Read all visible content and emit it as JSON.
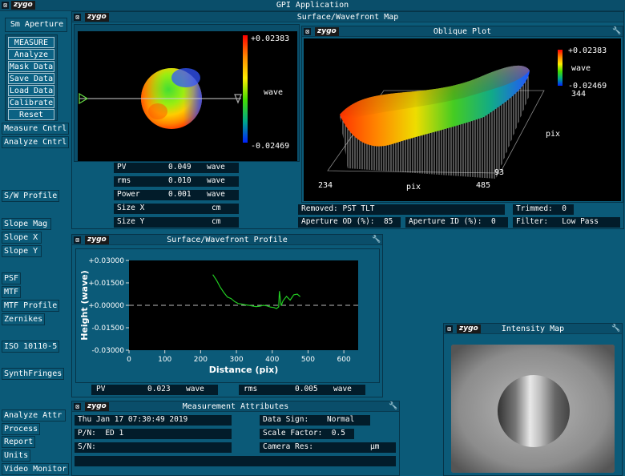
{
  "app": {
    "title": "GPI Application"
  },
  "left_buttons": {
    "sm_aperture": "Sm Aperture",
    "measure": "MEASURE",
    "analyze": "Analyze",
    "mask_data": "Mask Data",
    "save_data": "Save Data",
    "load_data": "Load Data",
    "calibrate": "Calibrate",
    "reset": "Reset",
    "measure_cntrl": "Measure Cntrl",
    "analyze_cntrl": "Analyze Cntrl",
    "sw_profile": "S/W Profile",
    "slope_mag": "Slope Mag",
    "slope_x": "Slope X",
    "slope_y": "Slope Y",
    "psf": "PSF",
    "mtf": "MTF",
    "mtf_profile": "MTF Profile",
    "zernikes": "Zernikes",
    "iso": "ISO 10110-5",
    "synthfringes": "SynthFringes",
    "analyze_attr": "Analyze Attr",
    "process": "Process",
    "report": "Report",
    "units": "Units",
    "video_monitor": "Video Monitor"
  },
  "logo": "zygo",
  "surface_map": {
    "title": "Surface/Wavefront Map",
    "scale_max": "+0.02383",
    "scale_min": "-0.02469",
    "scale_unit": "wave",
    "results": [
      {
        "label": "PV",
        "value": "0.049",
        "unit": "wave"
      },
      {
        "label": "rms",
        "value": "0.010",
        "unit": "wave"
      },
      {
        "label": "Power",
        "value": "0.001",
        "unit": "wave"
      },
      {
        "label": "Size X",
        "value": "",
        "unit": "cm"
      },
      {
        "label": "Size Y",
        "value": "",
        "unit": "cm"
      }
    ]
  },
  "oblique_plot": {
    "title": "Oblique Plot",
    "scale_max": "+0.02383",
    "scale_unit": "wave",
    "scale_min": "-0.02469",
    "y_top": "344",
    "y_axis_label": "pix",
    "y_bottom": "93",
    "x_left": "234",
    "x_axis_label": "pix",
    "x_right": "485"
  },
  "map_status": {
    "removed": "Removed: PST TLT",
    "trimmed": "Trimmed:  0",
    "aperture_od": "Aperture OD (%):  85",
    "aperture_id": "Aperture ID (%):  0",
    "filter": "Filter:   Low Pass"
  },
  "profile": {
    "title": "Surface/Wavefront Profile",
    "pv_label": "PV",
    "pv_value": "0.023",
    "pv_unit": "wave",
    "rms_label": "rms",
    "rms_value": "0.005",
    "rms_unit": "wave"
  },
  "chart_data": {
    "type": "line",
    "title": "",
    "xlabel": "Distance (pix)",
    "ylabel": "Height (wave)",
    "xlim": [
      0,
      640
    ],
    "ylim": [
      -0.03,
      0.03
    ],
    "x_ticks": [
      "0",
      "100",
      "200",
      "300",
      "400",
      "500",
      "600"
    ],
    "y_ticks": [
      "+0.03000",
      "+0.01500",
      "+0.00000",
      "-0.01500",
      "-0.03000"
    ],
    "grid": false,
    "zero_line": true,
    "series": [
      {
        "color": "#22cc22",
        "x": [
          234,
          245,
          255,
          265,
          275,
          285,
          295,
          305,
          315,
          325,
          335,
          345,
          355,
          365,
          375,
          385,
          395,
          405,
          412,
          418,
          420,
          425,
          430,
          440,
          450,
          460,
          470,
          478
        ],
        "y": [
          0.0205,
          0.0165,
          0.012,
          0.0085,
          0.0055,
          0.0045,
          0.0025,
          0.0012,
          0.0008,
          0.0003,
          0.0,
          -0.0005,
          -0.0009,
          -0.0006,
          0.0,
          -0.0004,
          -0.0012,
          -0.0015,
          -0.0022,
          -0.001,
          0.0095,
          -0.0003,
          0.003,
          0.006,
          0.0035,
          0.007,
          0.0075,
          0.0058
        ]
      }
    ]
  },
  "intensity_map": {
    "title": "Intensity Map"
  },
  "attributes": {
    "title": "Measurement Attributes",
    "date": "Thu Jan 17 07:30:49 2019",
    "pn": "P/N:  ED 1",
    "sn": "S/N:",
    "data_sign_label": "Data Sign:",
    "data_sign_value": "Normal",
    "scale_factor": "Scale Factor:  0.5",
    "camera_res_label": "Camera Res:",
    "camera_res_unit": "µm"
  }
}
